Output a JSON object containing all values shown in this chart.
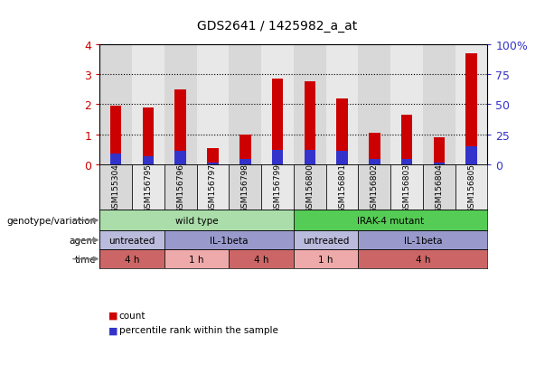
{
  "title": "GDS2641 / 1425982_a_at",
  "samples": [
    "GSM155304",
    "GSM156795",
    "GSM156796",
    "GSM156797",
    "GSM156798",
    "GSM156799",
    "GSM156800",
    "GSM156801",
    "GSM156802",
    "GSM156803",
    "GSM156804",
    "GSM156805"
  ],
  "count_values": [
    1.95,
    1.9,
    2.5,
    0.55,
    1.0,
    2.85,
    2.75,
    2.2,
    1.05,
    1.65,
    0.92,
    3.7
  ],
  "percentile_values": [
    9.5,
    6.75,
    11.25,
    2.0,
    4.5,
    12.5,
    12.5,
    11.75,
    4.5,
    4.5,
    2.0,
    15.0
  ],
  "bar_color_red": "#cc0000",
  "bar_color_blue": "#3333cc",
  "ylim_left": [
    0,
    4
  ],
  "ylim_right": [
    0,
    100
  ],
  "yticks_left": [
    0,
    1,
    2,
    3,
    4
  ],
  "yticks_right": [
    0,
    25,
    50,
    75,
    100
  ],
  "ytick_labels_right": [
    "0",
    "25",
    "50",
    "75",
    "100%"
  ],
  "bg_color": "#ffffff",
  "plot_bg_color": "#ffffff",
  "col_bg_even": "#d8d8d8",
  "col_bg_odd": "#e8e8e8",
  "genotype_row": {
    "label": "genotype/variation",
    "groups": [
      {
        "text": "wild type",
        "start": 0,
        "end": 6,
        "color": "#aaddaa"
      },
      {
        "text": "IRAK-4 mutant",
        "start": 6,
        "end": 12,
        "color": "#55cc55"
      }
    ]
  },
  "agent_row": {
    "label": "agent",
    "groups": [
      {
        "text": "untreated",
        "start": 0,
        "end": 2,
        "color": "#bbbbdd"
      },
      {
        "text": "IL-1beta",
        "start": 2,
        "end": 6,
        "color": "#9999cc"
      },
      {
        "text": "untreated",
        "start": 6,
        "end": 8,
        "color": "#bbbbdd"
      },
      {
        "text": "IL-1beta",
        "start": 8,
        "end": 12,
        "color": "#9999cc"
      }
    ]
  },
  "time_row": {
    "label": "time",
    "groups": [
      {
        "text": "4 h",
        "start": 0,
        "end": 2,
        "color": "#cc6666"
      },
      {
        "text": "1 h",
        "start": 2,
        "end": 4,
        "color": "#eeaaaa"
      },
      {
        "text": "4 h",
        "start": 4,
        "end": 6,
        "color": "#cc6666"
      },
      {
        "text": "1 h",
        "start": 6,
        "end": 8,
        "color": "#eeaaaa"
      },
      {
        "text": "4 h",
        "start": 8,
        "end": 12,
        "color": "#cc6666"
      }
    ]
  },
  "legend_count_label": "count",
  "legend_percentile_label": "percentile rank within the sample",
  "bar_width": 0.35
}
